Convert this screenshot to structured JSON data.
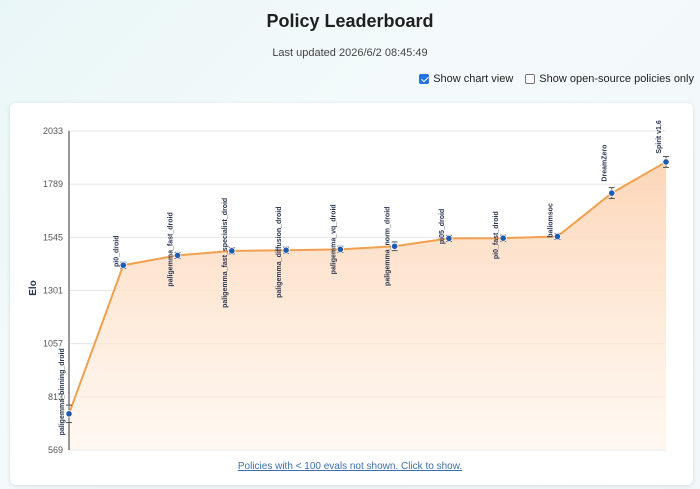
{
  "header": {
    "title": "Policy Leaderboard",
    "last_updated": "Last updated 2026/6/2 08:45:49"
  },
  "controls": {
    "chart_view": {
      "label": "Show chart view",
      "checked": true
    },
    "open_source": {
      "label": "Show open-source policies only",
      "checked": false
    }
  },
  "footnote": "Policies with < 100 evals not shown. Click to show.",
  "colors": {
    "line": "#f0a050",
    "fill_top": "#fcd9bd",
    "point": "#1d5bb0",
    "accent": "#2472e3"
  },
  "chart_data": {
    "type": "line",
    "title": "",
    "xlabel": "",
    "ylabel": "Elo",
    "ylim": [
      569,
      2033
    ],
    "yticks": [
      569,
      813,
      1057,
      1301,
      1545,
      1789,
      2033
    ],
    "grid": true,
    "series": [
      {
        "points": [
          {
            "label": "paligemma_binning_droid",
            "y": 735,
            "err": 40
          },
          {
            "label": "pi0_droid",
            "y": 1417,
            "err": 14
          },
          {
            "label": "paligemma_fast_droid",
            "y": 1462,
            "err": 14
          },
          {
            "label": "paligemma_fast_specialist_droid",
            "y": 1483,
            "err": 14
          },
          {
            "label": "paligemma_diffusion_droid",
            "y": 1486,
            "err": 14
          },
          {
            "label": "paligemma_vq_droid",
            "y": 1490,
            "err": 14
          },
          {
            "label": "paligemma_norm_droid",
            "y": 1504,
            "err": 20
          },
          {
            "label": "pi05_droid",
            "y": 1540,
            "err": 14
          },
          {
            "label": "pi0_fast_droid",
            "y": 1541,
            "err": 14
          },
          {
            "label": "baliomsoc",
            "y": 1549,
            "err": 14
          },
          {
            "label": "DreamZero",
            "y": 1748,
            "err": 25
          },
          {
            "label": "Spirit v1.6",
            "y": 1891,
            "err": 25
          }
        ]
      }
    ]
  }
}
